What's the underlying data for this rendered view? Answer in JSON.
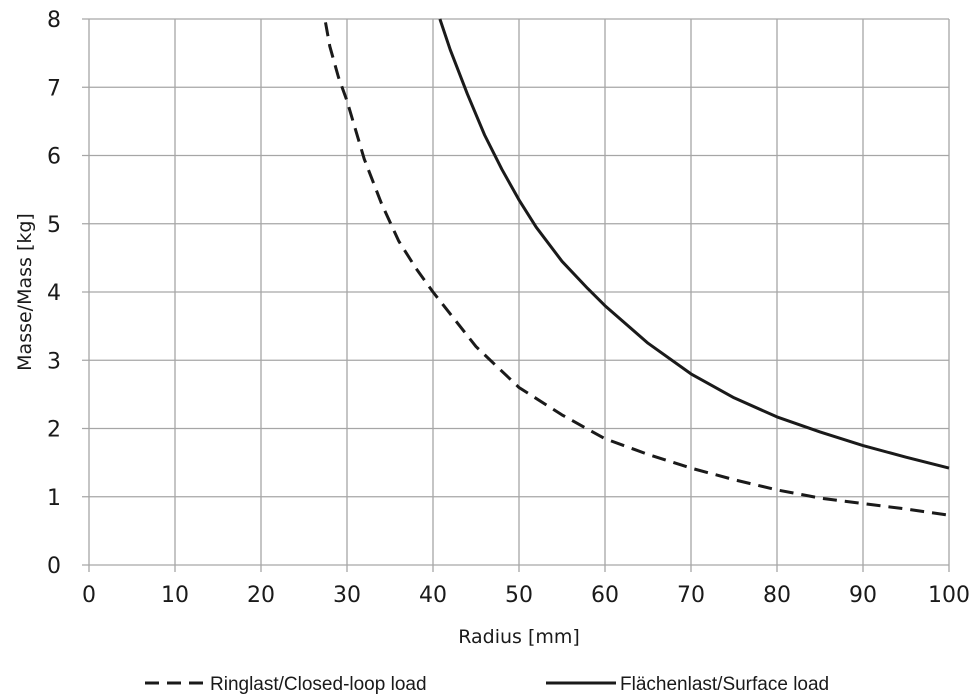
{
  "chart_data": {
    "type": "line",
    "title": "",
    "xlabel": "Radius [mm]",
    "ylabel": "Masse/Mass [kg]",
    "xlim": [
      0,
      100
    ],
    "ylim": [
      0,
      8
    ],
    "xticks": [
      0,
      10,
      20,
      30,
      40,
      50,
      60,
      70,
      80,
      90,
      100
    ],
    "yticks": [
      0,
      1,
      2,
      3,
      4,
      5,
      6,
      7,
      8
    ],
    "grid": true,
    "legend_position": "bottom",
    "series": [
      {
        "name": "Ringlast/Closed-loop load",
        "style": "dashed",
        "color": "#1a1a1a",
        "x": [
          27.5,
          28,
          29,
          30,
          32,
          34,
          36,
          38,
          40,
          45,
          50,
          55,
          60,
          65,
          70,
          75,
          80,
          85,
          90,
          95,
          100
        ],
        "y": [
          7.95,
          7.6,
          7.15,
          6.8,
          5.95,
          5.3,
          4.75,
          4.35,
          4.0,
          3.2,
          2.6,
          2.2,
          1.85,
          1.62,
          1.42,
          1.25,
          1.1,
          0.98,
          0.9,
          0.82,
          0.73
        ]
      },
      {
        "name": "Flächenlast/Surface load",
        "style": "solid",
        "color": "#1a1a1a",
        "x": [
          40.8,
          42,
          44,
          46,
          48,
          50,
          52,
          55,
          58,
          60,
          65,
          70,
          75,
          80,
          85,
          90,
          95,
          100
        ],
        "y": [
          8.0,
          7.55,
          6.9,
          6.3,
          5.8,
          5.35,
          4.95,
          4.45,
          4.05,
          3.8,
          3.25,
          2.8,
          2.45,
          2.17,
          1.95,
          1.75,
          1.58,
          1.42
        ]
      }
    ]
  }
}
